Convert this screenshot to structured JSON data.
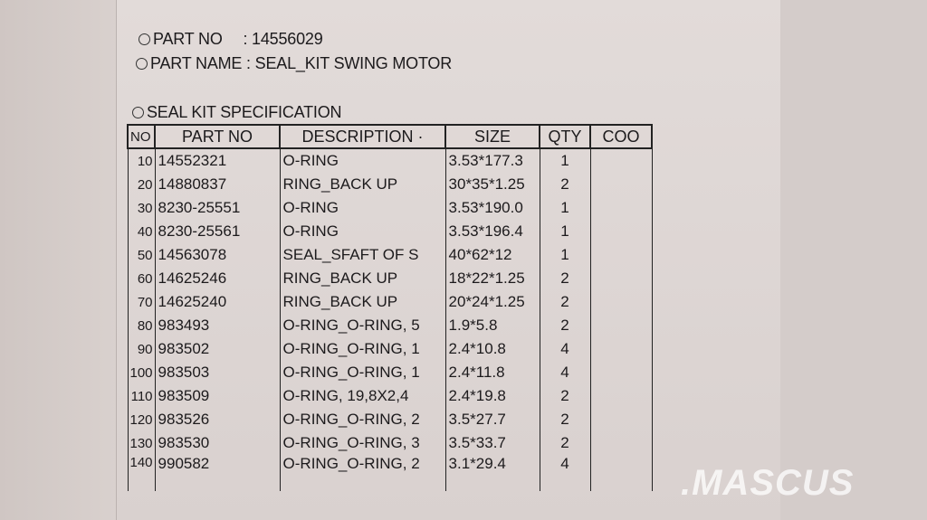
{
  "part_no_label": "PART NO",
  "part_no_value": ": 14556029",
  "part_name_label": "PART NAME",
  "part_name_value": ": SEAL_KIT SWING MOTOR",
  "spec_title": "SEAL KIT SPECIFICATION",
  "table": {
    "headers": [
      "NO",
      "PART NO",
      "DESCRIPTION ·",
      "SIZE",
      "QTY",
      "COO"
    ],
    "rows": [
      [
        "10",
        "14552321",
        "O-RING",
        "3.53*177.3",
        "1",
        ""
      ],
      [
        "20",
        "14880837",
        "RING_BACK UP",
        "30*35*1.25",
        "2",
        ""
      ],
      [
        "30",
        "8230-25551",
        "O-RING",
        "3.53*190.0",
        "1",
        ""
      ],
      [
        "40",
        "8230-25561",
        "O-RING",
        "3.53*196.4",
        "1",
        ""
      ],
      [
        "50",
        "14563078",
        "SEAL_SFAFT OF S",
        "40*62*12",
        "1",
        ""
      ],
      [
        "60",
        "14625246",
        "RING_BACK UP",
        "18*22*1.25",
        "2",
        ""
      ],
      [
        "70",
        "14625240",
        "RING_BACK UP",
        "20*24*1.25",
        "2",
        ""
      ],
      [
        "80",
        "983493",
        "O-RING_O-RING, 5",
        "1.9*5.8",
        "2",
        ""
      ],
      [
        "90",
        "983502",
        "O-RING_O-RING, 1",
        "2.4*10.8",
        "4",
        ""
      ],
      [
        "100",
        "983503",
        "O-RING_O-RING, 1",
        "2.4*11.8",
        "4",
        ""
      ],
      [
        "110",
        "983509",
        "O-RING, 19,8X2,4",
        "2.4*19.8",
        "2",
        ""
      ],
      [
        "120",
        "983526",
        "O-RING_O-RING, 2",
        "3.5*27.7",
        "2",
        ""
      ],
      [
        "130",
        "983530",
        "O-RING_O-RING, 3",
        "3.5*33.7",
        "2",
        ""
      ],
      [
        "140",
        "990582",
        "O-RING_O-RING, 2",
        "3.1*29.4",
        "4",
        ""
      ]
    ]
  },
  "watermark": ".MASCUS"
}
